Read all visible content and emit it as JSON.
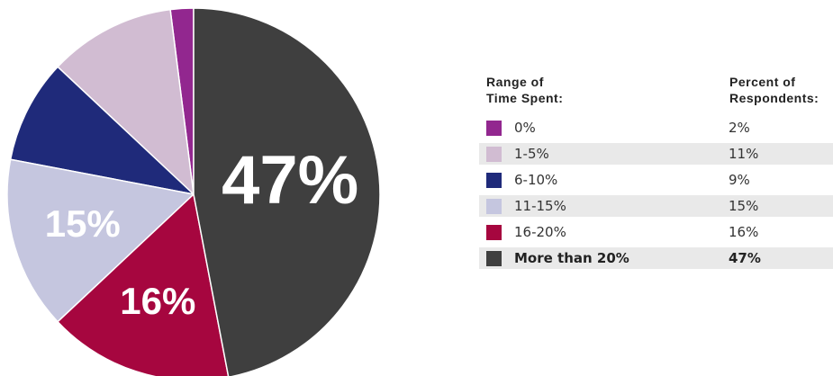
{
  "chart_data": {
    "type": "pie",
    "slices": [
      {
        "label": "0%",
        "value": 2,
        "color": "#92278f",
        "slice_label": ""
      },
      {
        "label": "1-5%",
        "value": 11,
        "color": "#d1bcd2",
        "slice_label": ""
      },
      {
        "label": "6-10%",
        "value": 9,
        "color": "#1f2a7a",
        "slice_label": ""
      },
      {
        "label": "11-15%",
        "value": 15,
        "color": "#c5c6df",
        "slice_label": "15%"
      },
      {
        "label": "16-20%",
        "value": 16,
        "color": "#a6063f",
        "slice_label": "16%"
      },
      {
        "label": "More than 20%",
        "value": 47,
        "color": "#3f3f3f",
        "slice_label": "47%"
      }
    ]
  },
  "legend": {
    "col1_header_line1": "Range of",
    "col1_header_line2": "Time Spent:",
    "col2_header_line1": "Percent of",
    "col2_header_line2": "Respondents:",
    "rows": [
      {
        "label": "0%",
        "value": "2%"
      },
      {
        "label": "1-5%",
        "value": "11%"
      },
      {
        "label": "6-10%",
        "value": "9%"
      },
      {
        "label": "11-15%",
        "value": "15%"
      },
      {
        "label": "16-20%",
        "value": "16%"
      },
      {
        "label": "More than 20%",
        "value": "47%"
      }
    ]
  }
}
